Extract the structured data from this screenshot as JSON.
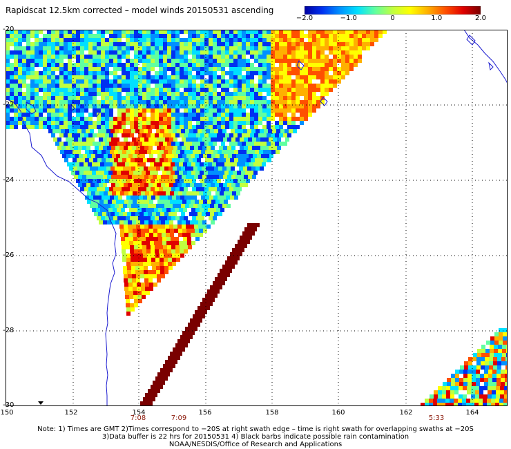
{
  "title": "Rapidscat 12.5km corrected – model winds 20150531 ascending",
  "colorbar": {
    "min": -2.0,
    "max": 2.0,
    "tick_labels": [
      "−2.0",
      "−1.0",
      "0",
      "1.0",
      "2.0"
    ],
    "tick_values": [
      -2.0,
      -1.0,
      0,
      1.0,
      2.0
    ],
    "colors": [
      "#0000a0",
      "#0030f0",
      "#0090ff",
      "#00e0ff",
      "#60ffa0",
      "#c0ff40",
      "#ffff00",
      "#ffb000",
      "#ff5000",
      "#e00000",
      "#7a0000"
    ]
  },
  "map": {
    "lon_range": [
      150,
      165
    ],
    "lat_range": [
      -30,
      -20
    ],
    "lat_labels": [
      "-20",
      "-22",
      "-24",
      "-26",
      "-28",
      "-30"
    ],
    "lon_labels": [
      "150",
      "152",
      "154",
      "156",
      "158",
      "160",
      "162",
      "164"
    ],
    "grid": "dotted",
    "coastline_color": "#1b1bd0"
  },
  "swath_times": [
    {
      "label": "7:08",
      "lon": 154
    },
    {
      "label": "7:09",
      "lon": 155.1
    },
    {
      "label": "5:33",
      "lon": 163
    }
  ],
  "notes": [
    "Note: 1) Times are GMT 2)Times correspond to −20S at right swath edge – time is right swath for overlapping swaths at −20S",
    "3)Data buffer is 22 hrs for 20150531 4) Black barbs indicate possible rain contamination",
    "NOAA/NESDIS/Office of Research and Applications"
  ]
}
